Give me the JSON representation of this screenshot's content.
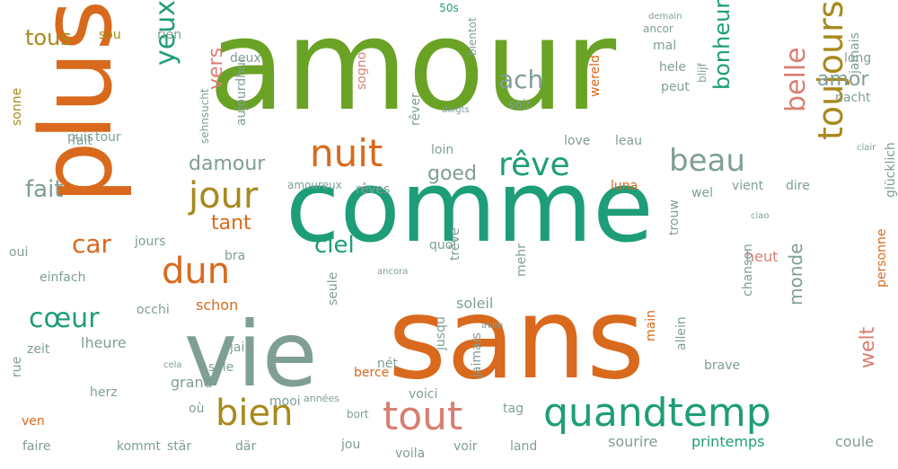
{
  "title": "50s",
  "colors": {
    "green": "#6aa226",
    "teal": "#1e9e78",
    "orange": "#d9691c",
    "gray": "#7f9e96",
    "pink": "#d87e72",
    "olive": "#a8891c",
    "title": "#1e9e78"
  },
  "words": [
    {
      "text": "amour",
      "color": "green"
    },
    {
      "text": "plus",
      "color": "orange"
    },
    {
      "text": "comme",
      "color": "teal"
    },
    {
      "text": "sans",
      "color": "orange"
    },
    {
      "text": "vie",
      "color": "gray"
    },
    {
      "text": "toujours",
      "color": "olive"
    },
    {
      "text": "quandtemp",
      "color": "teal"
    },
    {
      "text": "tout",
      "color": "pink"
    },
    {
      "text": "bien",
      "color": "olive"
    },
    {
      "text": "jour",
      "color": "olive"
    },
    {
      "text": "dun",
      "color": "orange"
    },
    {
      "text": "nuit",
      "color": "orange"
    },
    {
      "text": "rêve",
      "color": "teal"
    },
    {
      "text": "beau",
      "color": "gray"
    },
    {
      "text": "belle",
      "color": "pink"
    },
    {
      "text": "yeux",
      "color": "teal"
    },
    {
      "text": "ach",
      "color": "gray"
    },
    {
      "text": "bonheur",
      "color": "teal"
    },
    {
      "text": "cœur",
      "color": "teal"
    },
    {
      "text": "car",
      "color": "orange"
    },
    {
      "text": "damour",
      "color": "gray"
    },
    {
      "text": "fait",
      "color": "gray"
    },
    {
      "text": "tous",
      "color": "olive"
    },
    {
      "text": "ciel",
      "color": "teal"
    },
    {
      "text": "tant",
      "color": "orange"
    },
    {
      "text": "vers",
      "color": "pink"
    },
    {
      "text": "goed",
      "color": "gray"
    },
    {
      "text": "amor",
      "color": "gray"
    },
    {
      "text": "monde",
      "color": "gray"
    },
    {
      "text": "welt",
      "color": "pink"
    },
    {
      "text": "soleil",
      "color": "gray"
    },
    {
      "text": "schon",
      "color": "orange"
    },
    {
      "text": "heut",
      "color": "pink"
    },
    {
      "text": "love",
      "color": "gray"
    },
    {
      "text": "loin",
      "color": "gray"
    },
    {
      "text": "printemps",
      "color": "teal"
    },
    {
      "text": "sourire",
      "color": "gray"
    },
    {
      "text": "coule",
      "color": "gray"
    },
    {
      "text": "herz",
      "color": "gray"
    },
    {
      "text": "grand",
      "color": "gray"
    },
    {
      "text": "lheure",
      "color": "gray"
    },
    {
      "text": "zeit",
      "color": "gray"
    },
    {
      "text": "occhi",
      "color": "gray"
    },
    {
      "text": "einfach",
      "color": "gray"
    },
    {
      "text": "jours",
      "color": "gray"
    },
    {
      "text": "bra",
      "color": "gray"
    },
    {
      "text": "quoi",
      "color": "gray"
    },
    {
      "text": "trêve",
      "color": "gray"
    },
    {
      "text": "sole",
      "color": "gray"
    },
    {
      "text": "jai",
      "color": "gray"
    },
    {
      "text": "cela",
      "color": "gray"
    },
    {
      "text": "seule",
      "color": "gray"
    },
    {
      "text": "berce",
      "color": "orange"
    },
    {
      "text": "voici",
      "color": "gray"
    },
    {
      "text": "land",
      "color": "gray"
    },
    {
      "text": "voila",
      "color": "gray"
    },
    {
      "text": "voir",
      "color": "gray"
    },
    {
      "text": "tag",
      "color": "gray"
    },
    {
      "text": "mooi",
      "color": "gray"
    },
    {
      "text": "kommt",
      "color": "gray"
    },
    {
      "text": "faire",
      "color": "gray"
    },
    {
      "text": "jou",
      "color": "gray"
    },
    {
      "text": "där",
      "color": "gray"
    },
    {
      "text": "bort",
      "color": "gray"
    },
    {
      "text": "années",
      "color": "gray"
    },
    {
      "text": "rue",
      "color": "gray"
    },
    {
      "text": "ven",
      "color": "orange"
    },
    {
      "text": "oui",
      "color": "gray"
    },
    {
      "text": "fait",
      "color": "gray"
    },
    {
      "text": "puis",
      "color": "gray"
    },
    {
      "text": "tour",
      "color": "gray"
    },
    {
      "text": "sonne",
      "color": "olive"
    },
    {
      "text": "deux",
      "color": "gray"
    },
    {
      "text": "rien",
      "color": "gray"
    },
    {
      "text": "sou",
      "color": "olive"
    },
    {
      "text": "aujourdhui",
      "color": "gray"
    },
    {
      "text": "sehnsucht",
      "color": "gray"
    },
    {
      "text": "sogno",
      "color": "pink"
    },
    {
      "text": "rêver",
      "color": "gray"
    },
    {
      "text": "soir",
      "color": "gray"
    },
    {
      "text": "wereld",
      "color": "orange"
    },
    {
      "text": "mal",
      "color": "gray"
    },
    {
      "text": "hele",
      "color": "gray"
    },
    {
      "text": "peut",
      "color": "gray"
    },
    {
      "text": "jamais",
      "color": "gray"
    },
    {
      "text": "long",
      "color": "gray"
    },
    {
      "text": "nacht",
      "color": "gray"
    },
    {
      "text": "leau",
      "color": "gray"
    },
    {
      "text": "luna",
      "color": "orange"
    },
    {
      "text": "wel",
      "color": "gray"
    },
    {
      "text": "vient",
      "color": "gray"
    },
    {
      "text": "dire",
      "color": "gray"
    },
    {
      "text": "glücklich",
      "color": "gray"
    },
    {
      "text": "personne",
      "color": "orange"
    },
    {
      "text": "chanson",
      "color": "gray"
    },
    {
      "text": "brave",
      "color": "gray"
    },
    {
      "text": "allein",
      "color": "gray"
    },
    {
      "text": "main",
      "color": "orange"
    },
    {
      "text": "jusqu",
      "color": "gray"
    },
    {
      "text": "jaimais",
      "color": "gray"
    },
    {
      "text": "mehr",
      "color": "gray"
    },
    {
      "text": "ancora",
      "color": "gray"
    },
    {
      "text": "trouw",
      "color": "gray"
    },
    {
      "text": "rêves",
      "color": "gray"
    },
    {
      "text": "amoureux",
      "color": "gray"
    },
    {
      "text": "où",
      "color": "gray"
    },
    {
      "text": "stär",
      "color": "gray"
    },
    {
      "text": "nét",
      "color": "gray"
    },
    {
      "text": "avon",
      "color": "gray"
    },
    {
      "text": "ancor",
      "color": "gray"
    },
    {
      "text": "demain",
      "color": "gray"
    },
    {
      "text": "bientot",
      "color": "gray"
    },
    {
      "text": "doigts",
      "color": "gray"
    },
    {
      "text": "blijf",
      "color": "gray"
    },
    {
      "text": "clair",
      "color": "gray"
    },
    {
      "text": "ciao",
      "color": "gray"
    }
  ]
}
